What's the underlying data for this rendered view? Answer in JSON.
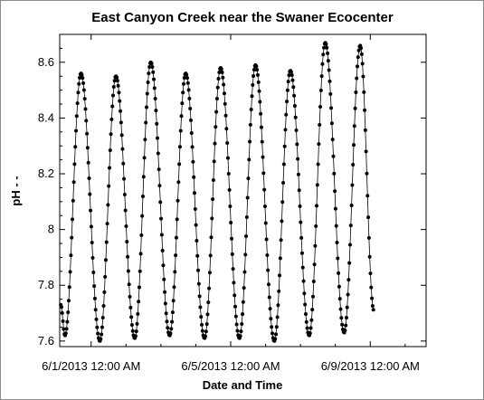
{
  "chart_data": {
    "type": "line",
    "title": "East Canyon Creek near the Swaner Ecocenter",
    "xlabel": "Date and Time",
    "ylabel": "pH - -",
    "ylim": [
      7.58,
      8.7
    ],
    "yticks": [
      7.6,
      7.8,
      8,
      8.2,
      8.4,
      8.6
    ],
    "ytick_labels": [
      "7.6",
      "7.8",
      "8",
      "8.2",
      "8.4",
      "8.6"
    ],
    "xlim_days": [
      -0.9,
      9.6
    ],
    "xticks": [
      {
        "label": "6/1/2013 12:00 AM",
        "day": 0
      },
      {
        "label": "6/5/2013 12:00 AM",
        "day": 4
      },
      {
        "label": "6/9/2013 12:00 AM",
        "day": 8
      }
    ],
    "grid": false,
    "marker": "dot",
    "series": [
      {
        "cycles": [
          {
            "min": 7.62,
            "max": 8.56
          },
          {
            "min": 7.6,
            "max": 8.55
          },
          {
            "min": 7.61,
            "max": 8.6
          },
          {
            "min": 7.62,
            "max": 8.56
          },
          {
            "min": 7.61,
            "max": 8.58
          },
          {
            "min": 7.61,
            "max": 8.59
          },
          {
            "min": 7.6,
            "max": 8.57
          },
          {
            "min": 7.62,
            "max": 8.67
          },
          {
            "min": 7.63,
            "max": 8.66
          }
        ],
        "start_value": 7.73,
        "end_value": 7.71
      }
    ]
  }
}
